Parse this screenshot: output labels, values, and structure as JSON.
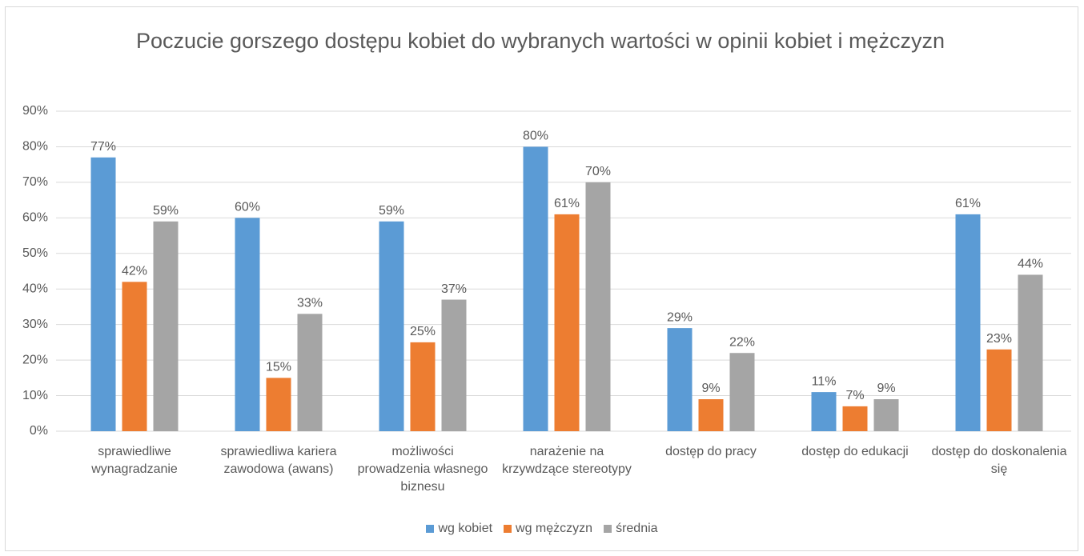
{
  "chart_data": {
    "type": "bar",
    "title": "Poczucie gorszego dostępu kobiet do wybranych wartości w opinii kobiet i mężczyzn",
    "categories": [
      "sprawiedliwe wynagradzanie",
      "sprawiedliwa kariera zawodowa (awans)",
      "możliwości prowadzenia własnego biznesu",
      "narażenie na krzywdzące stereotypy",
      "dostęp do pracy",
      "dostęp do edukacji",
      "dostęp do doskonalenia się"
    ],
    "series": [
      {
        "name": "wg kobiet",
        "color": "#5b9bd5",
        "values": [
          77,
          60,
          59,
          80,
          29,
          11,
          61
        ],
        "value_labels": [
          "77%",
          "60%",
          "59%",
          "80%",
          "29%",
          "11%",
          "61%"
        ]
      },
      {
        "name": "wg mężczyzn",
        "color": "#ed7d31",
        "values": [
          42,
          15,
          25,
          61,
          9,
          7,
          23
        ],
        "value_labels": [
          "42%",
          "15%",
          "25%",
          "61%",
          "9%",
          "7%",
          "23%"
        ]
      },
      {
        "name": "średnia",
        "color": "#a5a5a5",
        "values": [
          59,
          33,
          37,
          70,
          22,
          9,
          44
        ],
        "value_labels": [
          "59%",
          "33%",
          "37%",
          "70%",
          "22%",
          "9%",
          "44%"
        ]
      }
    ],
    "ylim": [
      0,
      90
    ],
    "yticks": [
      {
        "value": 0,
        "label": "0%"
      },
      {
        "value": 10,
        "label": "10%"
      },
      {
        "value": 20,
        "label": "20%"
      },
      {
        "value": 30,
        "label": "30%"
      },
      {
        "value": 40,
        "label": "40%"
      },
      {
        "value": 50,
        "label": "50%"
      },
      {
        "value": 60,
        "label": "60%"
      },
      {
        "value": 70,
        "label": "70%"
      },
      {
        "value": 80,
        "label": "80%"
      },
      {
        "value": 90,
        "label": "90%"
      }
    ],
    "grid": true,
    "legend": "bottom"
  }
}
